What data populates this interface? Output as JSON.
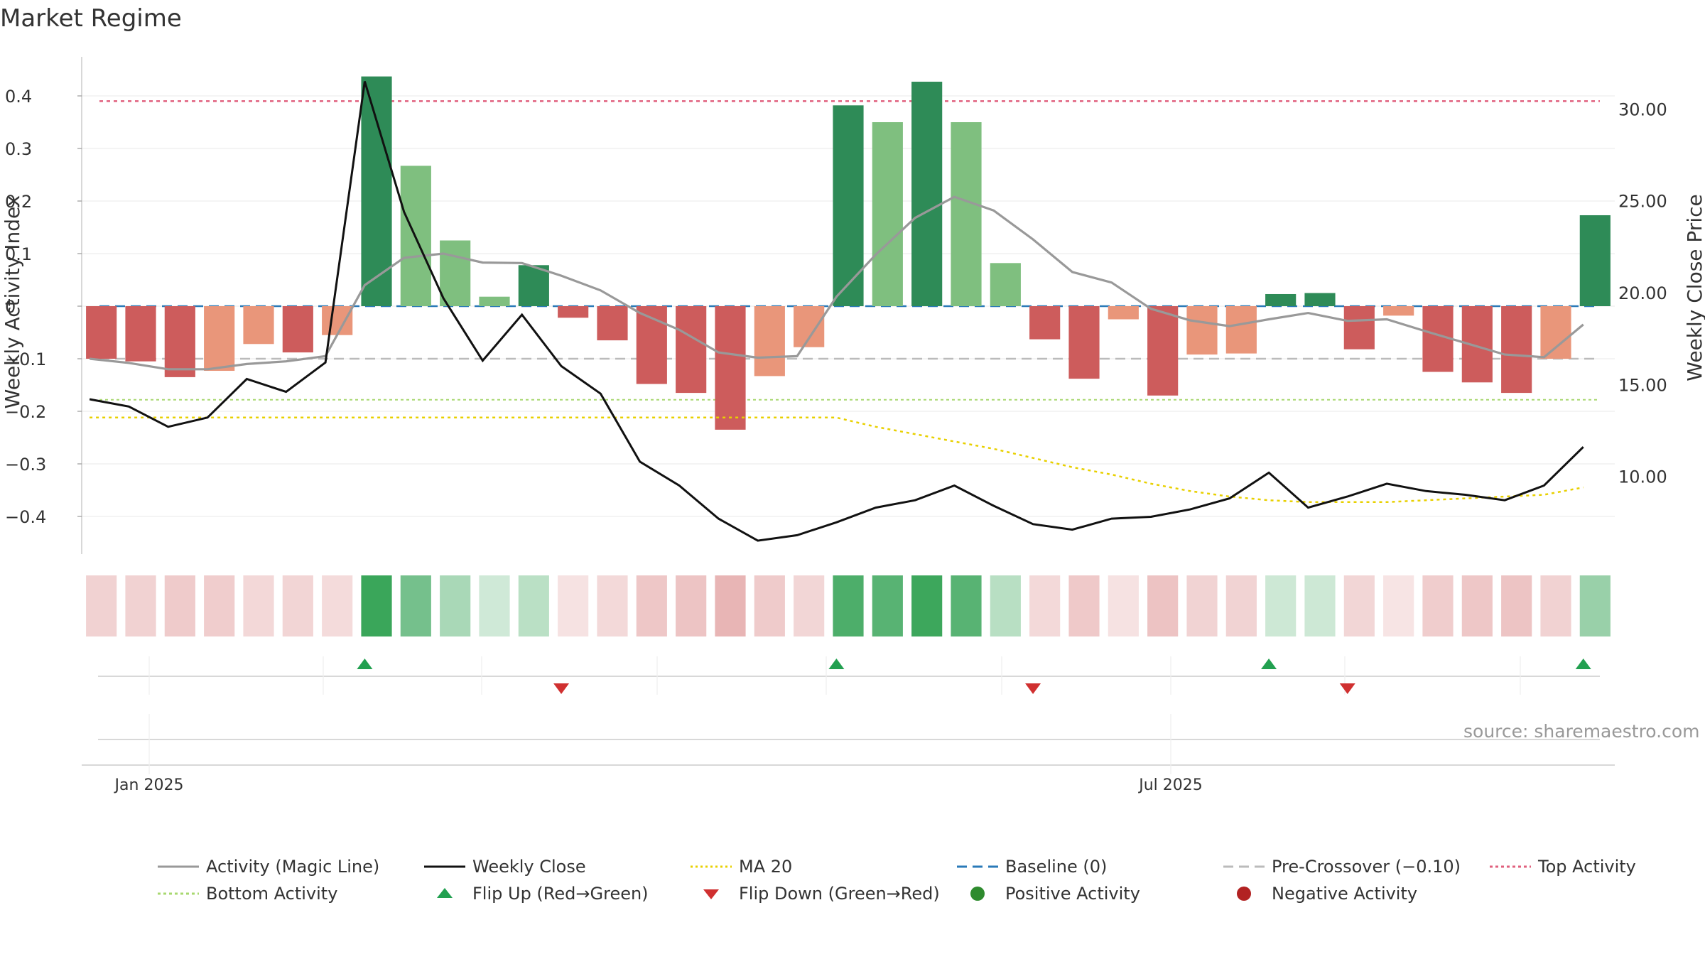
{
  "title": "Market Regime",
  "source": "source: sharemaestro.com",
  "colors": {
    "strong_pos": "#2e8b57",
    "weak_pos": "#7fbf7f",
    "strong_neg": "#cd5c5c",
    "weak_neg": "#e9967a",
    "magic": "#999999",
    "close": "#111111",
    "ma20": "#e8d000",
    "baseline": "#2a7ab8",
    "precross": "#bbbbbb",
    "top": "#e0607e",
    "bottom": "#a8d870",
    "flip_up": "#22a050",
    "flip_down": "#d03030",
    "pos_dot": "#2e8b2e",
    "neg_dot": "#b22222"
  },
  "legend": [
    {
      "label": "Activity (Magic Line)",
      "kind": "line",
      "color": "#999999",
      "dash": ""
    },
    {
      "label": "Weekly Close",
      "kind": "line",
      "color": "#111111",
      "dash": ""
    },
    {
      "label": "MA 20",
      "kind": "line",
      "color": "#e8d000",
      "dash": "3 4"
    },
    {
      "label": "Baseline (0)",
      "kind": "line",
      "color": "#2a7ab8",
      "dash": "14 8"
    },
    {
      "label": "Pre-Crossover (−0.10)",
      "kind": "line",
      "color": "#bbbbbb",
      "dash": "14 8"
    },
    {
      "label": "Top Activity",
      "kind": "line",
      "color": "#e0607e",
      "dash": "4 4"
    },
    {
      "label": "Bottom Activity",
      "kind": "line",
      "color": "#a8d870",
      "dash": "4 4"
    },
    {
      "label": "Flip Up (Red→Green)",
      "kind": "tri-up",
      "color": "#22a050",
      "dash": ""
    },
    {
      "label": "Flip Down (Green→Red)",
      "kind": "tri-down",
      "color": "#d03030",
      "dash": ""
    },
    {
      "label": "Positive Activity",
      "kind": "dot",
      "color": "#2e8b2e",
      "dash": ""
    },
    {
      "label": "Negative Activity",
      "kind": "dot",
      "color": "#b22222",
      "dash": ""
    }
  ],
  "chart_data": {
    "type": "bar",
    "x_axis": {
      "tick_labels": [
        "Jan 2025",
        "Jul 2025"
      ]
    },
    "left_axis": {
      "label": "Weekly Activity Index",
      "ylim": [
        -0.47,
        0.48
      ],
      "ticks": [
        0.4,
        0.3,
        0.2,
        0.1,
        0,
        -0.1,
        -0.2,
        -0.3,
        -0.4
      ],
      "tick_labels": [
        "0.4",
        "0.3",
        "0.2",
        "0.1",
        "0",
        "−0.1",
        "−0.2",
        "−0.3",
        "−0.4"
      ]
    },
    "right_axis": {
      "label": "Weekly Close Price",
      "ticks": [
        30,
        25,
        20,
        15,
        10
      ],
      "tick_labels": [
        "30.00",
        "25.00",
        "20.00",
        "15.00",
        "10.00"
      ]
    },
    "reference_lines": {
      "top_activity": 0.39,
      "baseline": 0,
      "pre_crossover": -0.1,
      "bottom_activity": -0.178
    },
    "activity": [
      -0.1,
      -0.105,
      -0.135,
      -0.123,
      -0.072,
      -0.088,
      -0.055,
      0.437,
      0.267,
      0.125,
      0.018,
      0.078,
      -0.022,
      -0.065,
      -0.148,
      -0.165,
      -0.235,
      -0.133,
      -0.078,
      0.382,
      0.35,
      0.427,
      0.35,
      0.082,
      -0.063,
      -0.138,
      -0.025,
      -0.17,
      -0.092,
      -0.09,
      0.023,
      0.025,
      -0.082,
      -0.018,
      -0.125,
      -0.145,
      -0.165,
      -0.1,
      0.173
    ],
    "bar_strength": [
      "strong",
      "strong",
      "strong",
      "weak",
      "weak",
      "strong",
      "weak",
      "strong",
      "weak",
      "weak",
      "weak",
      "strong",
      "strong",
      "strong",
      "strong",
      "strong",
      "strong",
      "weak",
      "weak",
      "strong",
      "weak",
      "strong",
      "weak",
      "weak",
      "strong",
      "strong",
      "weak",
      "strong",
      "weak",
      "weak",
      "strong",
      "strong",
      "strong",
      "weak",
      "strong",
      "strong",
      "strong",
      "weak",
      "strong"
    ],
    "magic_line": [
      -0.1,
      -0.108,
      -0.12,
      -0.12,
      -0.11,
      -0.105,
      -0.095,
      0.04,
      0.092,
      0.1,
      0.083,
      0.082,
      0.058,
      0.03,
      -0.013,
      -0.045,
      -0.088,
      -0.098,
      -0.095,
      0.018,
      0.098,
      0.168,
      0.208,
      0.182,
      0.127,
      0.065,
      0.045,
      -0.005,
      -0.027,
      -0.038,
      -0.025,
      -0.013,
      -0.028,
      -0.025,
      -0.048,
      -0.07,
      -0.092,
      -0.097,
      -0.035
    ],
    "weekly_close": [
      14.2,
      13.8,
      12.7,
      13.2,
      15.3,
      14.6,
      16.2,
      31.5,
      24.4,
      19.7,
      16.3,
      18.8,
      16.0,
      14.5,
      10.8,
      9.5,
      7.7,
      6.5,
      6.8,
      7.5,
      8.3,
      8.7,
      9.5,
      8.4,
      7.4,
      7.1,
      7.7,
      7.8,
      8.2,
      8.8,
      10.2,
      8.3,
      8.9,
      9.6,
      9.2,
      9.0,
      8.7,
      9.5,
      11.6
    ],
    "ma20": [
      13.2,
      13.2,
      13.2,
      13.2,
      13.2,
      13.2,
      13.2,
      13.2,
      13.2,
      13.2,
      13.2,
      13.2,
      13.2,
      13.2,
      13.2,
      13.2,
      13.2,
      13.2,
      13.2,
      13.2,
      12.7,
      12.3,
      11.9,
      11.5,
      11.0,
      10.5,
      10.1,
      9.6,
      9.2,
      8.9,
      8.7,
      8.6,
      8.6,
      8.6,
      8.7,
      8.8,
      8.9,
      9.0,
      9.4
    ],
    "flip_up_weeks": [
      7,
      19,
      30,
      38
    ],
    "flip_down_weeks": [
      12,
      24,
      32
    ]
  }
}
